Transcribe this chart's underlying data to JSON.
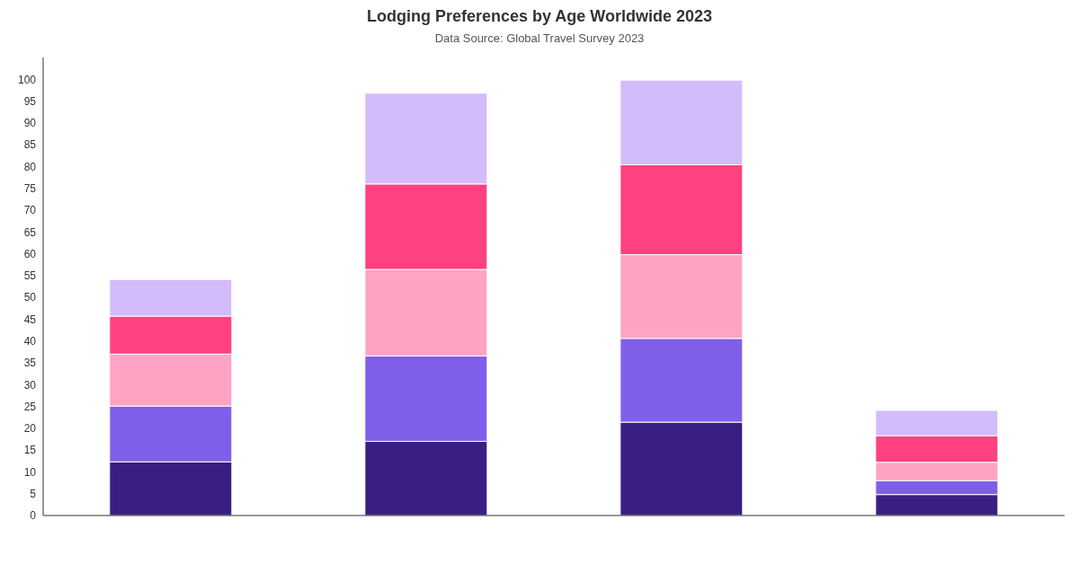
{
  "chart_data": {
    "type": "bar",
    "title": "Lodging Preferences by Age Worldwide 2023",
    "subtitle": "Data Source: Global Travel Survey 2023",
    "categories": [
      null,
      null,
      null,
      null
    ],
    "series": [
      {
        "color": "#3a1e82",
        "values": [
          12.3,
          17.0,
          21.4,
          4.8
        ]
      },
      {
        "color": "#7f5fea",
        "values": [
          12.8,
          19.6,
          19.2,
          3.2
        ]
      },
      {
        "color": "#ffa3c4",
        "values": [
          11.9,
          19.8,
          19.2,
          4.2
        ]
      },
      {
        "color": "#ff4081",
        "values": [
          8.7,
          19.6,
          20.6,
          6.1
        ]
      },
      {
        "color": "#d4bbf9",
        "values": [
          8.4,
          20.8,
          19.4,
          5.8
        ]
      }
    ],
    "stacked": true,
    "ylim": [
      0,
      105
    ],
    "yticks": [
      0,
      5,
      10,
      15,
      20,
      25,
      30,
      35,
      40,
      45,
      50,
      55,
      60,
      65,
      70,
      75,
      80,
      85,
      90,
      95,
      100
    ],
    "grid": false,
    "legend": false,
    "tick_labels": "y"
  }
}
